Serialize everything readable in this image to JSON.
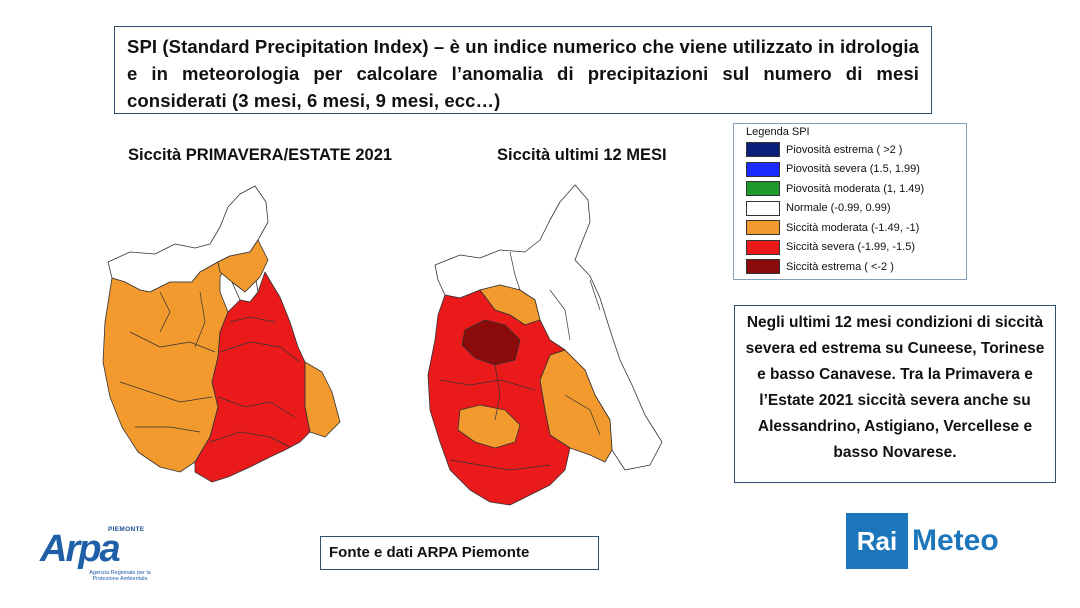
{
  "intro": {
    "text": "SPI (Standard Precipitation Index) – è un indice numerico che viene utilizzato in idrologia e in meteorologia per calcolare l’anomalia di precipitazioni sul numero di mesi considerati (3 mesi, 6 mesi, 9 mesi, ecc…)"
  },
  "maps": {
    "left_title": "Siccità PRIMAVERA/ESTATE 2021",
    "right_title": "Siccità ultimi 12 MESI"
  },
  "legend": {
    "title": "Legenda SPI",
    "items": [
      {
        "label": "Piovosità estrema ( >2 )",
        "color": "#0a1f7a"
      },
      {
        "label": "Piovosità severa (1.5, 1.99)",
        "color": "#1a2bff"
      },
      {
        "label": "Piovosità moderata (1, 1.49)",
        "color": "#1e9a2a"
      },
      {
        "label": "Normale (-0.99, 0.99)",
        "color": "#ffffff"
      },
      {
        "label": "Siccità moderata (-1.49, -1)",
        "color": "#f39a2e"
      },
      {
        "label": "Siccità severa (-1.99, -1.5)",
        "color": "#ea1a1a"
      },
      {
        "label": "Siccità estrema ( <-2 )",
        "color": "#8b0a0a"
      }
    ]
  },
  "summary": {
    "text": "Negli ultimi 12 mesi condizioni di siccità severa ed estrema su Cuneese, Torinese e basso Canavese. Tra la Primavera e l’Estate 2021 siccità severa anche su Alessandrino, Astigiano, Vercellese e basso Novarese."
  },
  "source": {
    "text": "Fonte e dati ARPA Piemonte"
  },
  "logos": {
    "arpa_word": "Arpa",
    "arpa_region": "PIEMONTE",
    "arpa_sub": "Agenzia Regionale per la Protezione Ambientale",
    "rai": "Rai",
    "meteo": "Meteo"
  }
}
